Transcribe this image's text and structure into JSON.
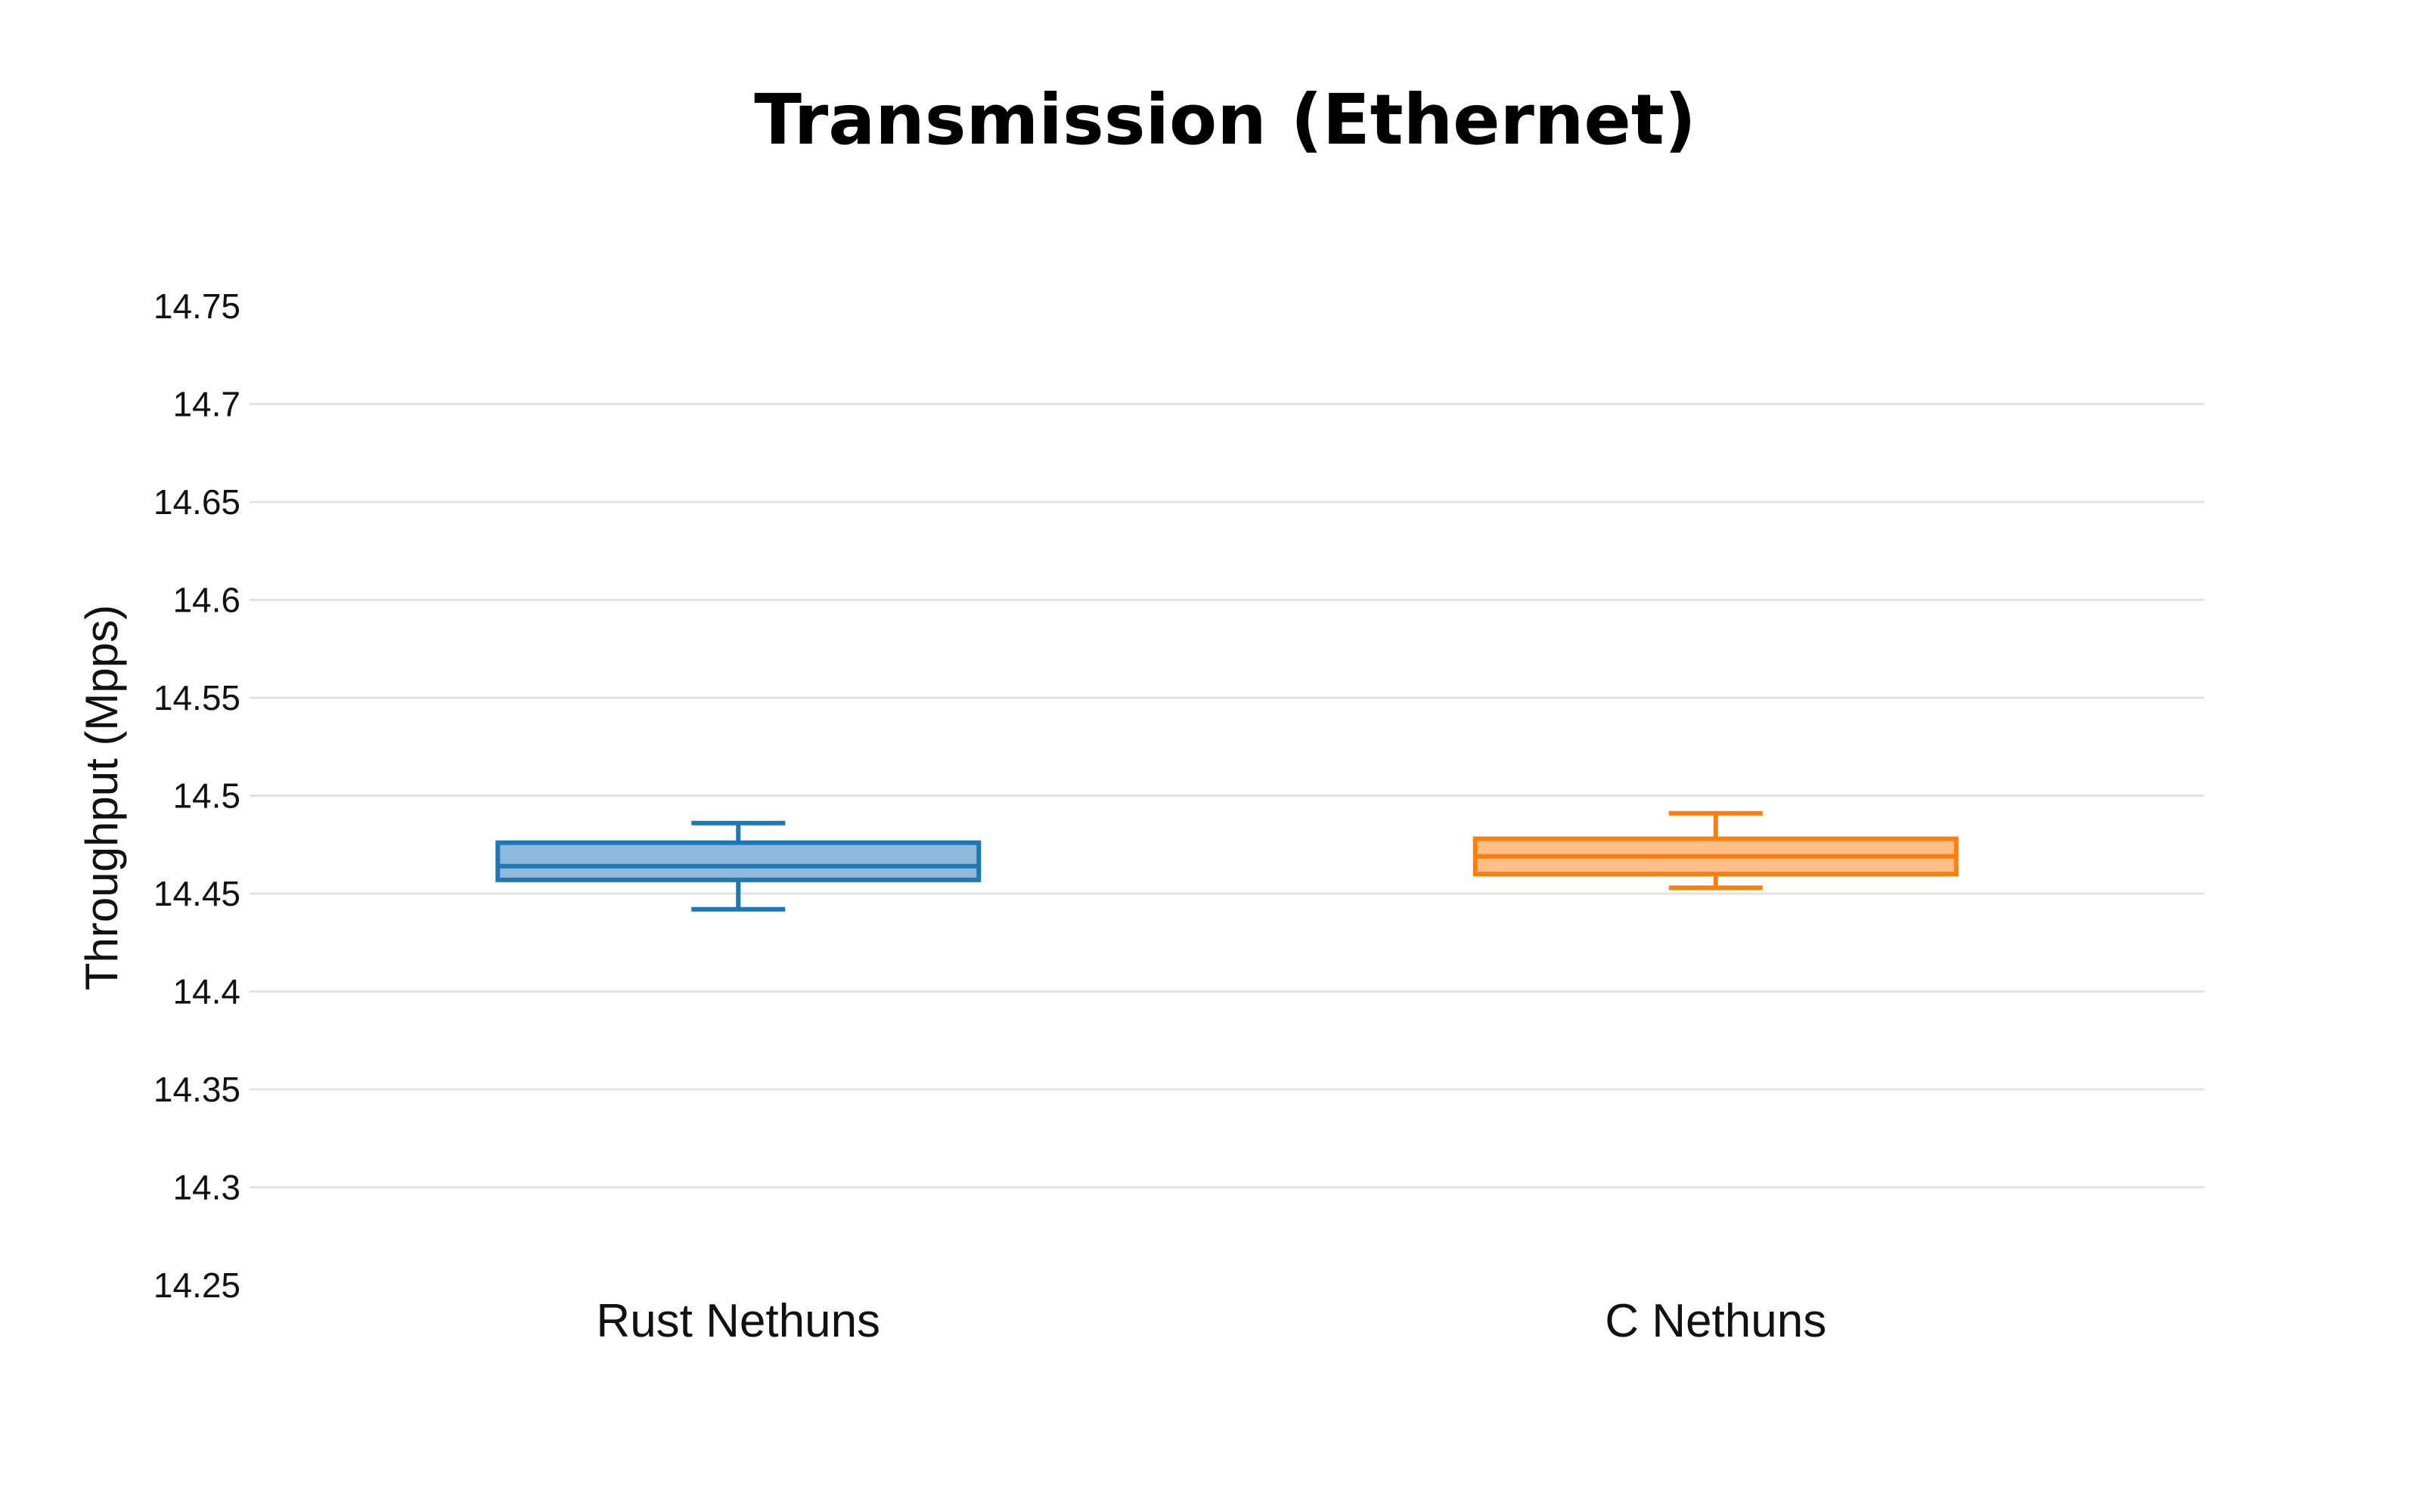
{
  "chart_data": {
    "type": "box",
    "title": "Transmission (Ethernet)",
    "xlabel": "",
    "ylabel": "Throughput (Mpps)",
    "ylim": [
      14.25,
      14.75
    ],
    "yticks": [
      14.25,
      14.3,
      14.35,
      14.4,
      14.45,
      14.5,
      14.55,
      14.6,
      14.65,
      14.7,
      14.75
    ],
    "ytick_labels": [
      "14.25",
      "14.3",
      "14.35",
      "14.4",
      "14.45",
      "14.5",
      "14.55",
      "14.6",
      "14.65",
      "14.7",
      "14.75"
    ],
    "grid": true,
    "legend": "none",
    "categories": [
      "Rust Nethuns",
      "C Nethuns"
    ],
    "series": [
      {
        "category": "Rust Nethuns",
        "color": "#1f77b4",
        "fill": "#8fb9db",
        "min": 14.442,
        "q1": 14.457,
        "median": 14.464,
        "q3": 14.476,
        "max": 14.486
      },
      {
        "category": "C Nethuns",
        "color": "#ff7f0e",
        "fill": "#ffbf86",
        "min": 14.453,
        "q1": 14.46,
        "median": 14.469,
        "q3": 14.478,
        "max": 14.491
      }
    ]
  }
}
